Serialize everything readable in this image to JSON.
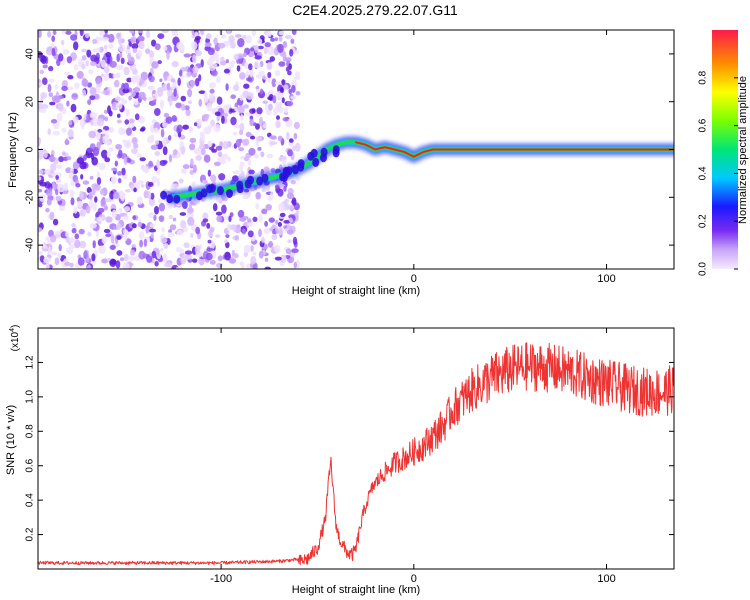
{
  "figure_title": "C2E4.2025.279.22.07.G11",
  "colors": {
    "signal": "#ee3333",
    "noise": "#7a33ee",
    "track_core": "#ff1a1a",
    "track_mid": "#22dd44",
    "track_edge": "#2244ee"
  },
  "chart_data": [
    {
      "type": "heatmap",
      "title": "",
      "xlabel": "Height of straight line (km)",
      "ylabel": "Frequency (Hz)",
      "xlim": [
        -195,
        135
      ],
      "ylim": [
        -50,
        50
      ],
      "xticks": [
        -100,
        0,
        100
      ],
      "xtick_labels": [
        "-100",
        "0",
        "100"
      ],
      "yticks": [
        -40,
        -20,
        0,
        20,
        40
      ],
      "ytick_labels": [
        "-40",
        "-20",
        "0",
        "20",
        "40"
      ],
      "colorbar": {
        "label": "Normalized spectral amplitude",
        "range": [
          0,
          1
        ],
        "ticks": [
          0.0,
          0.2,
          0.4,
          0.6,
          0.8
        ],
        "tick_labels": [
          "0.0",
          "0.2",
          "0.4",
          "0.6",
          "0.8"
        ],
        "placement": "right"
      },
      "noise_region_x": [
        -195,
        -60
      ],
      "track": {
        "x": [
          -125,
          -110,
          -100,
          -90,
          -80,
          -70,
          -62,
          -55,
          -50,
          -45,
          -40,
          -35,
          -30,
          -25,
          -20,
          -15,
          -10,
          -5,
          0,
          5,
          10,
          20,
          40,
          60,
          80,
          100,
          120,
          135
        ],
        "y": [
          -20,
          -18,
          -17,
          -15,
          -13,
          -11,
          -9,
          -6,
          -3,
          0,
          2,
          3,
          3,
          2,
          0,
          1,
          0,
          -1,
          -3,
          -1,
          0,
          0,
          0,
          0,
          0,
          0,
          0,
          0
        ]
      }
    },
    {
      "type": "line",
      "title": "",
      "xlabel": "Height of straight line (km)",
      "ylabel": "SNR (10 * v/v)",
      "y_scale_label": "(x10",
      "y_scale_exponent": "4",
      "xlim": [
        -195,
        135
      ],
      "ylim": [
        0,
        1.4
      ],
      "xticks": [
        -100,
        0,
        100
      ],
      "xtick_labels": [
        "-100",
        "0",
        "100"
      ],
      "yticks": [
        0.2,
        0.4,
        0.6,
        0.8,
        1.0,
        1.2
      ],
      "ytick_labels": [
        "0.2",
        "0.4",
        "0.6",
        "0.8",
        "1.0",
        "1.2"
      ],
      "series": [
        {
          "x": [
            -195,
            -150,
            -100,
            -70,
            -60,
            -55,
            -50,
            -46,
            -44,
            -43,
            -42,
            -41,
            -40,
            -38,
            -36,
            -34,
            -32,
            -30,
            -28,
            -26,
            -24,
            -22,
            -20,
            -18,
            -16,
            -14,
            -12,
            -10,
            -5,
            0,
            5,
            10,
            15,
            20,
            30,
            40,
            50,
            60,
            70,
            80,
            90,
            100,
            110,
            120,
            130,
            135
          ],
          "y": [
            0.04,
            0.04,
            0.04,
            0.05,
            0.06,
            0.08,
            0.14,
            0.3,
            0.55,
            0.65,
            0.5,
            0.35,
            0.25,
            0.18,
            0.14,
            0.11,
            0.1,
            0.14,
            0.25,
            0.35,
            0.42,
            0.48,
            0.52,
            0.55,
            0.58,
            0.6,
            0.62,
            0.65,
            0.68,
            0.72,
            0.76,
            0.82,
            0.88,
            0.98,
            1.1,
            1.18,
            1.23,
            1.25,
            1.24,
            1.22,
            1.18,
            1.15,
            1.12,
            1.1,
            1.1,
            1.12
          ]
        }
      ]
    }
  ]
}
